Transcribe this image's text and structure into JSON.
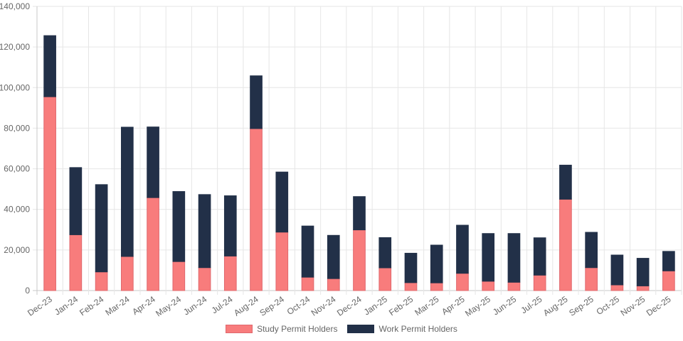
{
  "chart_data": {
    "type": "bar",
    "stacked": true,
    "title": "",
    "xlabel": "",
    "ylabel": "",
    "ylim": [
      0,
      140000
    ],
    "y_ticks": [
      "0",
      "20,000",
      "40,000",
      "60,000",
      "80,000",
      "100,000",
      "120,000",
      "140,000"
    ],
    "y_tick_values": [
      0,
      20000,
      40000,
      60000,
      80000,
      100000,
      120000,
      140000
    ],
    "grid": true,
    "legend_position": "bottom",
    "categories": [
      "Dec-23",
      "Jan-24",
      "Feb-24",
      "Mar-24",
      "Apr-24",
      "May-24",
      "Jun-24",
      "Jul-24",
      "Aug-24",
      "Sep-24",
      "Oct-24",
      "Nov-24",
      "Dec-24",
      "Jan-25",
      "Feb-25",
      "Mar-25",
      "Apr-25",
      "May-25",
      "Jun-25",
      "Jul-25",
      "Aug-25",
      "Sep-25",
      "Oct-25",
      "Nov-25",
      "Dec-25"
    ],
    "series": [
      {
        "name": "Study Permit Holders",
        "color": "#f87c7c",
        "border": "#e0686d",
        "values": [
          95500,
          27500,
          9200,
          16800,
          45800,
          14300,
          11300,
          17000,
          79800,
          28800,
          6600,
          5900,
          29900,
          11200,
          3900,
          3800,
          8500,
          4600,
          4100,
          7600,
          45000,
          11300,
          2800,
          2300,
          9700
        ]
      },
      {
        "name": "Work Permit Holders",
        "color": "#223048",
        "border": "#223048",
        "values": [
          30100,
          33100,
          43000,
          63700,
          34800,
          34500,
          36000,
          29700,
          26000,
          29600,
          25200,
          21300,
          16400,
          14900,
          14500,
          18600,
          23700,
          23500,
          24000,
          18400,
          16800,
          17400,
          14700,
          13600,
          9600
        ]
      }
    ]
  }
}
